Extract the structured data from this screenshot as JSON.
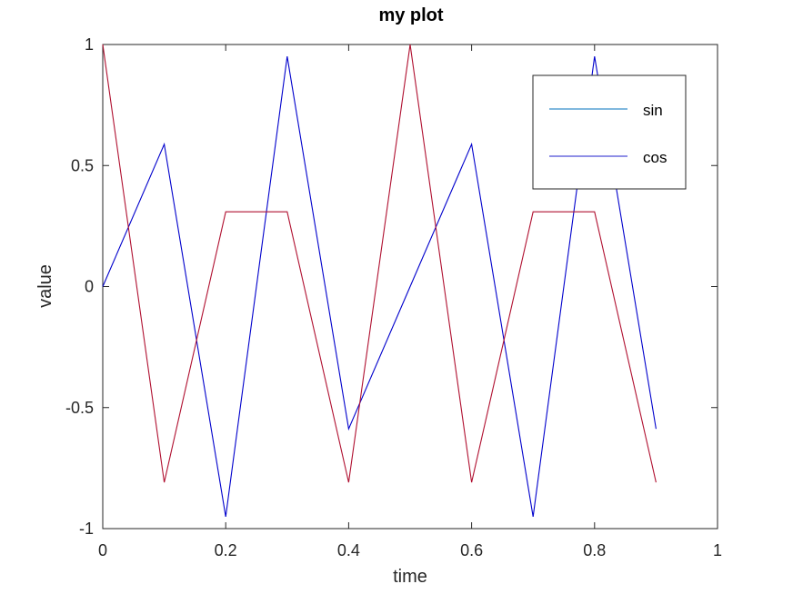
{
  "chart_data": {
    "type": "line",
    "title": "my plot",
    "xlabel": "time",
    "ylabel": "value",
    "xlim": [
      0,
      1
    ],
    "ylim": [
      -1,
      1
    ],
    "x_ticks": [
      0,
      0.2,
      0.4,
      0.6,
      0.8,
      1
    ],
    "x_tick_labels": [
      "0",
      "0.2",
      "0.4",
      "0.6",
      "0.8",
      "1"
    ],
    "y_ticks": [
      -1,
      -0.5,
      0,
      0.5,
      1
    ],
    "y_tick_labels": [
      "-1",
      "-0.5",
      "0",
      "0.5",
      "1"
    ],
    "grid": false,
    "legend_position": "top-right",
    "x": [
      0,
      0.1,
      0.2,
      0.3,
      0.4,
      0.5,
      0.6,
      0.7,
      0.8,
      0.9
    ],
    "series": [
      {
        "name": "sin",
        "color": "#0000cc",
        "legend_color": "#0072bd",
        "values": [
          0,
          0.588,
          -0.951,
          0.951,
          -0.588,
          0,
          0.588,
          -0.951,
          0.951,
          -0.588
        ]
      },
      {
        "name": "cos",
        "color": "#b01030",
        "legend_color": "#1f1fcc",
        "values": [
          1,
          -0.809,
          0.309,
          0.309,
          -0.809,
          1,
          -0.809,
          0.309,
          0.309,
          -0.809
        ]
      }
    ]
  }
}
